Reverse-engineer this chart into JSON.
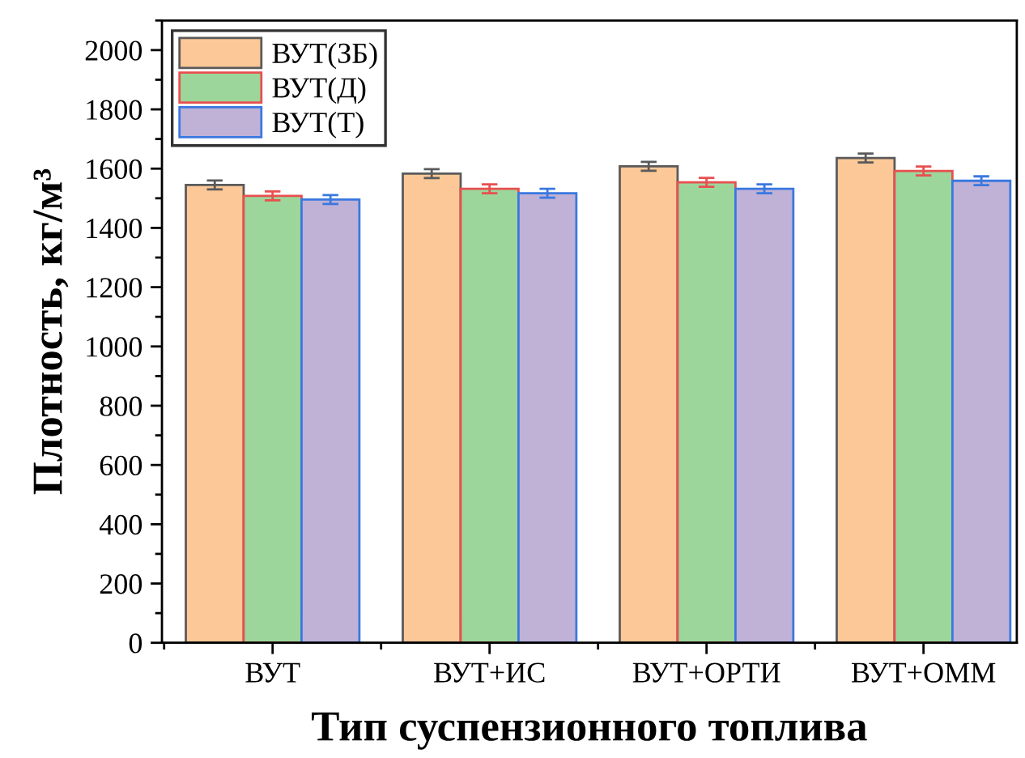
{
  "chart_data": {
    "type": "bar",
    "xlabel": "Тип суспензионного топлива",
    "ylabel": "Плотность, кг/м³",
    "categories": [
      "ВУТ",
      "ВУТ+ИС",
      "ВУТ+ОРТИ",
      "ВУТ+ОММ"
    ],
    "series": [
      {
        "name": "ВУТ(ЗБ)",
        "color": "#fdc897",
        "values": [
          1545,
          1583,
          1608,
          1636
        ],
        "errors": [
          15,
          15,
          15,
          15
        ]
      },
      {
        "name": "ВУТ(Д)",
        "color": "#9dd69b",
        "values": [
          1508,
          1532,
          1554,
          1592
        ],
        "errors": [
          15,
          15,
          15,
          15
        ]
      },
      {
        "name": "ВУТ(Т)",
        "color": "#c0b1d6",
        "values": [
          1496,
          1517,
          1532,
          1559
        ],
        "errors": [
          15,
          15,
          15,
          15
        ]
      }
    ],
    "ylim": [
      0,
      2100
    ],
    "yticks": [
      0,
      200,
      400,
      600,
      800,
      1000,
      1200,
      1400,
      1600,
      1800,
      2000
    ],
    "grid": false,
    "legend": "top left"
  }
}
